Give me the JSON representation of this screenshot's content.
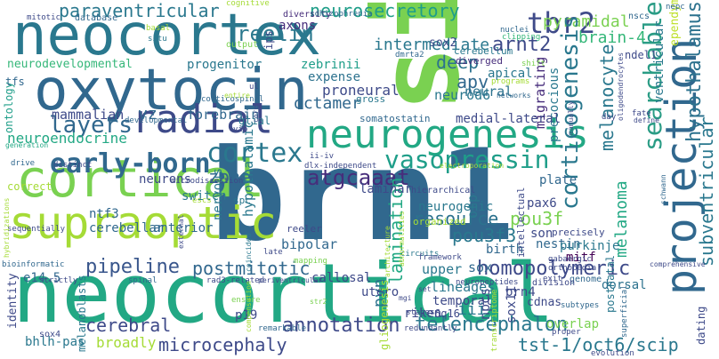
{
  "palette": {
    "green": "#7ad151",
    "light_green": "#a5db36",
    "teal": "#22a884",
    "sea": "#2a9c85",
    "cyan": "#1f9e89",
    "blue": "#31688e",
    "steel": "#3e4a89",
    "navy": "#2c728e",
    "purple": "#472d7b",
    "dark_purple": "#440154",
    "violet": "#482878",
    "yellow_green": "#bddf26",
    "mint": "#35b779",
    "slate": "#39568c"
  },
  "words": [
    {
      "text": "brn1",
      "color": "#31688e"
    },
    {
      "text": "sim1",
      "color": "#7ad151"
    },
    {
      "text": "neocortical",
      "color": "#22a884"
    },
    {
      "text": "neocortex",
      "color": "#2a788e"
    },
    {
      "text": "oxytocin",
      "color": "#31688e"
    },
    {
      "text": "cortical",
      "color": "#7ad151"
    },
    {
      "text": "supraoptic",
      "color": "#a5db36"
    },
    {
      "text": "neurogenesis",
      "color": "#22a884"
    },
    {
      "text": "radial",
      "color": "#3e4a89"
    },
    {
      "text": "projection",
      "color": "#31688e"
    },
    {
      "text": "early-born",
      "color": "#31688e"
    },
    {
      "text": "cortex",
      "color": "#2a788e"
    },
    {
      "text": "vasopressin",
      "color": "#1f9e89"
    },
    {
      "text": "hypothalamus",
      "color": "#2c728e"
    },
    {
      "text": "tbr2",
      "color": "#3e4a89"
    },
    {
      "text": "paraventricular",
      "color": "#2a788e"
    },
    {
      "text": "reelin",
      "color": "#2a788e"
    },
    {
      "text": "neurosecretory",
      "color": "#1f9e89"
    },
    {
      "text": "axons",
      "color": "#472d7b"
    },
    {
      "text": "pyramidal",
      "color": "#7ad151"
    },
    {
      "text": "arnt2",
      "color": "#3e4a89"
    },
    {
      "text": "brain-4",
      "color": "#35b779"
    },
    {
      "text": "searchable",
      "color": "#2a9c85"
    },
    {
      "text": "corticogenesis",
      "color": "#2a788e"
    },
    {
      "text": "layers",
      "color": "#31688e"
    },
    {
      "text": "intermediate",
      "color": "#2a788e"
    },
    {
      "text": "deep",
      "color": "#2c728e"
    },
    {
      "text": "apv",
      "color": "#31688e"
    },
    {
      "text": "melanocyte",
      "color": "#2a788e"
    },
    {
      "text": "atgcaaat",
      "color": "#472d7b"
    },
    {
      "text": "zone",
      "color": "#31688e"
    },
    {
      "text": "pou3f",
      "color": "#7ad151"
    },
    {
      "text": "pou3f3",
      "color": "#2a788e"
    },
    {
      "text": "pipeline",
      "color": "#39568c"
    },
    {
      "text": "postmitotic",
      "color": "#31688e"
    },
    {
      "text": "homopolymeric",
      "color": "#3e4a89"
    },
    {
      "text": "lamination",
      "color": "#22a884"
    },
    {
      "text": "resource",
      "color": "#2c728e"
    },
    {
      "text": "annotation",
      "color": "#3e4a89"
    },
    {
      "text": "telencephalon",
      "color": "#2a788e"
    },
    {
      "text": "microcephaly",
      "color": "#3e4a89"
    },
    {
      "text": "tst-1/oct6/scip",
      "color": "#2a788e"
    },
    {
      "text": "cerebral",
      "color": "#3e4a89"
    },
    {
      "text": "subventricular",
      "color": "#2a788e"
    },
    {
      "text": "melanoma",
      "color": "#22a884"
    },
    {
      "text": "octamer",
      "color": "#31688e"
    },
    {
      "text": "forebrain",
      "color": "#31688e"
    },
    {
      "text": "neuroendocrine",
      "color": "#22a884"
    },
    {
      "text": "mammalian",
      "color": "#3e4a89"
    },
    {
      "text": "neurodevelopmental",
      "color": "#35b779"
    },
    {
      "text": "progenitor",
      "color": "#2a788e"
    },
    {
      "text": "zebrinii",
      "color": "#1f9e89"
    },
    {
      "text": "expense",
      "color": "#2c728e"
    },
    {
      "text": "proneural",
      "color": "#3e4a89"
    },
    {
      "text": "neurod6",
      "color": "#2a788e"
    },
    {
      "text": "neural",
      "color": "#2c728e"
    },
    {
      "text": "migrating",
      "color": "#472d7b"
    },
    {
      "text": "sox2",
      "color": "#3e4a89"
    },
    {
      "text": "apical",
      "color": "#2a788e"
    },
    {
      "text": "cerebellum",
      "color": "#2a788e"
    },
    {
      "text": "diverged",
      "color": "#472d7b"
    },
    {
      "text": "neurons",
      "color": "#3e4a89"
    },
    {
      "text": "switch",
      "color": "#2a788e"
    },
    {
      "text": "ntf3",
      "color": "#31688e"
    },
    {
      "text": "cerebellar",
      "color": "#31688e"
    },
    {
      "text": "anterior",
      "color": "#31688e"
    },
    {
      "text": "nervous",
      "color": "#2a788e"
    },
    {
      "text": "hypothalamic",
      "color": "#2a788e"
    },
    {
      "text": "bipolar",
      "color": "#31688e"
    },
    {
      "text": "laminar",
      "color": "#3e4a89"
    },
    {
      "text": "neurogenic",
      "color": "#2a788e"
    },
    {
      "text": "birth",
      "color": "#31688e"
    },
    {
      "text": "upper",
      "color": "#2a788e"
    },
    {
      "text": "otp",
      "color": "#2a788e"
    },
    {
      "text": "son",
      "color": "#3e4a89"
    },
    {
      "text": "nestin",
      "color": "#31688e"
    },
    {
      "text": "mitf",
      "color": "#440154"
    },
    {
      "text": "purkinje",
      "color": "#2a788e"
    },
    {
      "text": "pax6",
      "color": "#3e4a89"
    },
    {
      "text": "plate",
      "color": "#31688e"
    },
    {
      "text": "precocious",
      "color": "#2a788e"
    },
    {
      "text": "sox",
      "color": "#31688e"
    },
    {
      "text": "lineages",
      "color": "#2a788e"
    },
    {
      "text": "temporal",
      "color": "#3e4a89"
    },
    {
      "text": "brn4",
      "color": "#3e4a89"
    },
    {
      "text": "pvn",
      "color": "#2c728e"
    },
    {
      "text": "npcs",
      "color": "#3e4a89"
    },
    {
      "text": "iii",
      "color": "#2a788e"
    },
    {
      "text": "riken",
      "color": "#3e4a89"
    },
    {
      "text": "6q16",
      "color": "#3e4a89"
    },
    {
      "text": "callosal",
      "color": "#3e4a89"
    },
    {
      "text": "utero",
      "color": "#3e4a89"
    },
    {
      "text": "vz",
      "color": "#31688e"
    },
    {
      "text": "ventricular",
      "color": "#2a788e"
    },
    {
      "text": "overlap",
      "color": "#7ad151"
    },
    {
      "text": "cdnas",
      "color": "#3e4a89"
    },
    {
      "text": "sox11",
      "color": "#3e4a89"
    },
    {
      "text": "postnatal",
      "color": "#2a788e"
    },
    {
      "text": "dorsal",
      "color": "#2c728e"
    },
    {
      "text": "p19",
      "color": "#3e4a89"
    },
    {
      "text": "broadly",
      "color": "#a5db36"
    },
    {
      "text": "identity",
      "color": "#3e4a89"
    },
    {
      "text": "bhlh-pas",
      "color": "#2a788e"
    },
    {
      "text": "e14.5",
      "color": "#31688e"
    },
    {
      "text": "melanoblasts",
      "color": "#2a788e"
    },
    {
      "text": "dating",
      "color": "#3e4a89"
    },
    {
      "text": "ependymal",
      "color": "#bddf26"
    },
    {
      "text": "ontology",
      "color": "#1f9e89"
    },
    {
      "text": "tfs",
      "color": "#31688e"
    },
    {
      "text": "glial",
      "color": "#2a788e"
    },
    {
      "text": "medial-lateral",
      "color": "#3e4a89"
    },
    {
      "text": "somatostatin",
      "color": "#31688e"
    },
    {
      "text": "spc",
      "color": "#2a788e"
    },
    {
      "text": "sox4",
      "color": "#3e4a89"
    },
    {
      "text": "ndel1",
      "color": "#3e4a89"
    },
    {
      "text": "gross",
      "color": "#2a788e"
    },
    {
      "text": "ips",
      "color": "#3e4a89"
    },
    {
      "text": "output",
      "color": "#7ad151"
    },
    {
      "text": "dmrta2",
      "color": "#31688e"
    },
    {
      "text": "database",
      "color": "#31688e"
    },
    {
      "text": "diversity",
      "color": "#472d7b"
    },
    {
      "text": "schizophrenia",
      "color": "#31688e"
    },
    {
      "text": "cognitive",
      "color": "#a5db36"
    },
    {
      "text": "mitotic",
      "color": "#3e4a89"
    },
    {
      "text": "nscs",
      "color": "#31688e"
    },
    {
      "text": "nepc",
      "color": "#31688e"
    },
    {
      "text": "basal",
      "color": "#a5db36"
    },
    {
      "text": "situ",
      "color": "#2a788e"
    },
    {
      "text": "clipping",
      "color": "#35b779"
    },
    {
      "text": "nuclei",
      "color": "#31688e"
    },
    {
      "text": "shift",
      "color": "#7ad151"
    },
    {
      "text": "programs",
      "color": "#a5db36"
    },
    {
      "text": "developmental",
      "color": "#31688e"
    },
    {
      "text": "corticospinal",
      "color": "#31688e"
    },
    {
      "text": "generation",
      "color": "#22a884"
    },
    {
      "text": "drive",
      "color": "#31688e"
    },
    {
      "text": "distinct",
      "color": "#3e4a89"
    },
    {
      "text": "microdissection",
      "color": "#3e4a89"
    },
    {
      "text": "dlx-independent",
      "color": "#3e4a89"
    },
    {
      "text": "electroporation",
      "color": "#a5db36"
    },
    {
      "text": "hierarchical",
      "color": "#3e4a89"
    },
    {
      "text": "correct",
      "color": "#a5db36"
    },
    {
      "text": "escs",
      "color": "#a5db36"
    },
    {
      "text": "reeler",
      "color": "#3e4a89"
    },
    {
      "text": "organized",
      "color": "#a5db36"
    },
    {
      "text": "precisely",
      "color": "#3e4a89"
    },
    {
      "text": "intellectual",
      "color": "#3e4a89"
    },
    {
      "text": "gabaergic",
      "color": "#3e4a89"
    },
    {
      "text": "orthopedia",
      "color": "#3e4a89"
    },
    {
      "text": "genome",
      "color": "#31688e"
    },
    {
      "text": "division",
      "color": "#3e4a89"
    },
    {
      "text": "circuits",
      "color": "#2a788e"
    },
    {
      "text": "abnormalities",
      "color": "#a5db36"
    },
    {
      "text": "coincided",
      "color": "#2a788e"
    },
    {
      "text": "late",
      "color": "#3e4a89"
    },
    {
      "text": "mapping",
      "color": "#7ad151"
    },
    {
      "text": "architecture",
      "color": "#a5db36"
    },
    {
      "text": "framework",
      "color": "#3e4a89"
    },
    {
      "text": "rad3-related",
      "color": "#3e4a89"
    },
    {
      "text": "periventricular",
      "color": "#3e4a89"
    },
    {
      "text": "spinal",
      "color": "#31688e"
    },
    {
      "text": "strictly",
      "color": "#3e4a89"
    },
    {
      "text": "bioinformatic",
      "color": "#31688e"
    },
    {
      "text": "sequentially",
      "color": "#3e4a89"
    },
    {
      "text": "hybridizations",
      "color": "#a5db36"
    },
    {
      "text": "compensation",
      "color": "#a5db36"
    },
    {
      "text": "remarkable",
      "color": "#31688e"
    },
    {
      "text": "ensure",
      "color": "#7ad151"
    },
    {
      "text": "neuropeptides",
      "color": "#3e4a89"
    },
    {
      "text": "redundantly",
      "color": "#3e4a89"
    },
    {
      "text": "stages",
      "color": "#3e4a89"
    },
    {
      "text": "transcriptome",
      "color": "#a5db36"
    },
    {
      "text": "gliogenesis",
      "color": "#a5db36"
    },
    {
      "text": "superficial",
      "color": "#31688e"
    },
    {
      "text": "subtypes",
      "color": "#31688e"
    },
    {
      "text": "proper",
      "color": "#3e4a89"
    },
    {
      "text": "evolution",
      "color": "#3e4a89"
    },
    {
      "text": "comprehensive",
      "color": "#3e4a89"
    },
    {
      "text": "exit",
      "color": "#3e4a89"
    },
    {
      "text": "entire",
      "color": "#a5db36"
    },
    {
      "text": "networks",
      "color": "#31688e"
    },
    {
      "text": "manually",
      "color": "#3e4a89"
    },
    {
      "text": "fate",
      "color": "#3e4a89"
    },
    {
      "text": "oligodendrocytes",
      "color": "#3e4a89"
    },
    {
      "text": "day",
      "color": "#3e4a89"
    },
    {
      "text": "define",
      "color": "#3e4a89"
    },
    {
      "text": "schwann",
      "color": "#31688e"
    },
    {
      "text": "ul",
      "color": "#3e4a89"
    },
    {
      "text": "ii-iv",
      "color": "#3e4a89"
    },
    {
      "text": "vip",
      "color": "#3e4a89"
    },
    {
      "text": "core",
      "color": "#3e4a89"
    },
    {
      "text": "external",
      "color": "#3e4a89"
    },
    {
      "text": "set",
      "color": "#3e4a89"
    },
    {
      "text": "str2",
      "color": "#7ad151"
    },
    {
      "text": "mgi",
      "color": "#3e4a89"
    }
  ]
}
